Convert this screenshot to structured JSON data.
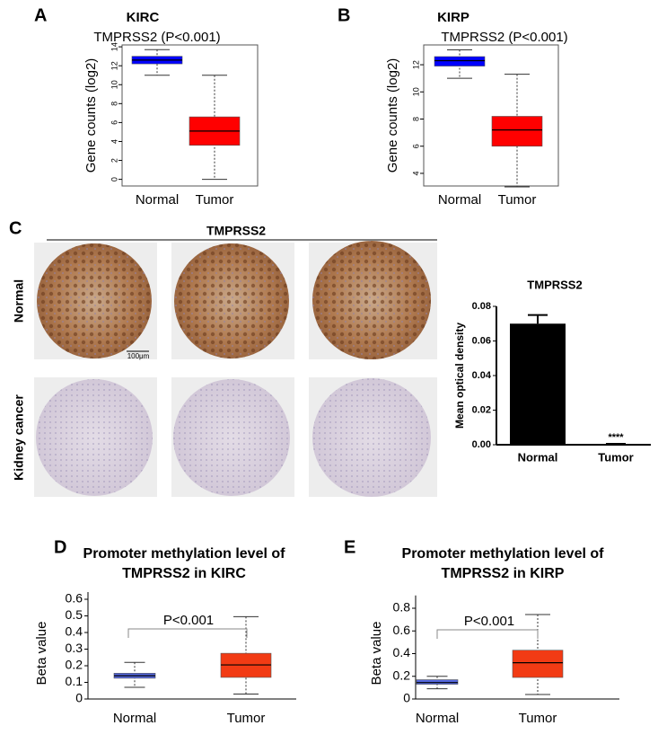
{
  "panels": [
    "A",
    "B",
    "C",
    "D",
    "E"
  ],
  "ihc": {
    "title": "TMPRSS2",
    "rows": [
      "Normal",
      "Kidney cancer"
    ],
    "scale_bar": "100μm"
  },
  "chart_data": [
    {
      "type": "box",
      "title": "KIRC",
      "subtitle": "TMPRSS2 (P<0.001)",
      "ylabel": "Gene counts (log2)",
      "categories": [
        "Normal",
        "Tumor"
      ],
      "colors": [
        "#0000ff",
        "#ff0000"
      ],
      "boxes": [
        {
          "min": 11,
          "q1": 12.2,
          "median": 12.6,
          "q3": 13,
          "max": 13.7
        },
        {
          "min": 0,
          "q1": 3.6,
          "median": 5.1,
          "q3": 6.6,
          "max": 11
        }
      ],
      "ylim": [
        -0.7,
        14.2
      ],
      "yticks": [
        0,
        2,
        4,
        6,
        8,
        10,
        12,
        14
      ]
    },
    {
      "type": "box",
      "title": "KIRP",
      "subtitle": "TMPRSS2 (P<0.001)",
      "ylabel": "Gene counts (log2)",
      "categories": [
        "Normal",
        "Tumor"
      ],
      "colors": [
        "#0000ff",
        "#ff0000"
      ],
      "boxes": [
        {
          "min": 11,
          "q1": 11.9,
          "median": 12.3,
          "q3": 12.6,
          "max": 13.1
        },
        {
          "min": 3,
          "q1": 6,
          "median": 7.2,
          "q3": 8.2,
          "max": 11.3
        }
      ],
      "ylim": [
        3.07,
        13.46
      ],
      "yticks": [
        4,
        6,
        8,
        10,
        12
      ]
    },
    {
      "type": "bar",
      "title": "TMPRSS2",
      "ylabel": "Mean optical density",
      "categories": [
        "Normal",
        "Tumor"
      ],
      "values": [
        0.07,
        0.0003
      ],
      "errors": [
        0.005,
        0.0002
      ],
      "color": "#000000",
      "annotation": "****",
      "ylim": [
        0,
        0.08
      ],
      "yticks": [
        {
          "value": 0,
          "label": "0.00"
        },
        {
          "value": 0.02,
          "label": "0.02"
        },
        {
          "value": 0.04,
          "label": "0.04"
        },
        {
          "value": 0.06,
          "label": "0.06"
        },
        {
          "value": 0.08,
          "label": "0.08"
        }
      ]
    },
    {
      "type": "box",
      "title": [
        "Promoter methylation level of",
        "TMPRSS2 in KIRC"
      ],
      "ylabel": "Beta value",
      "annotation": "P<0.001",
      "categories": [
        "Normal",
        "Tumor"
      ],
      "colors": [
        "#5468e0",
        "#f23b14"
      ],
      "boxes": [
        {
          "min": 0.07,
          "q1": 0.125,
          "median": 0.14,
          "q3": 0.155,
          "max": 0.22
        },
        {
          "min": 0.03,
          "q1": 0.13,
          "median": 0.205,
          "q3": 0.275,
          "max": 0.495
        }
      ],
      "ylim": [
        0,
        0.6
      ],
      "yticks": [
        0,
        0.1,
        0.2,
        0.3,
        0.4,
        0.5,
        0.6
      ]
    },
    {
      "type": "box",
      "title": [
        "Promoter methylation level of",
        "TMPRSS2 in KIRP"
      ],
      "ylabel": "Beta value",
      "annotation": "P<0.001",
      "categories": [
        "Normal",
        "Tumor"
      ],
      "colors": [
        "#5468e0",
        "#f23b14"
      ],
      "boxes": [
        {
          "min": 0.09,
          "q1": 0.13,
          "median": 0.145,
          "q3": 0.17,
          "max": 0.2
        },
        {
          "min": 0.04,
          "q1": 0.19,
          "median": 0.32,
          "q3": 0.43,
          "max": 0.745
        }
      ],
      "ylim": [
        0,
        0.85
      ],
      "yticks": [
        0,
        0.2,
        0.4,
        0.6,
        0.8
      ]
    }
  ]
}
